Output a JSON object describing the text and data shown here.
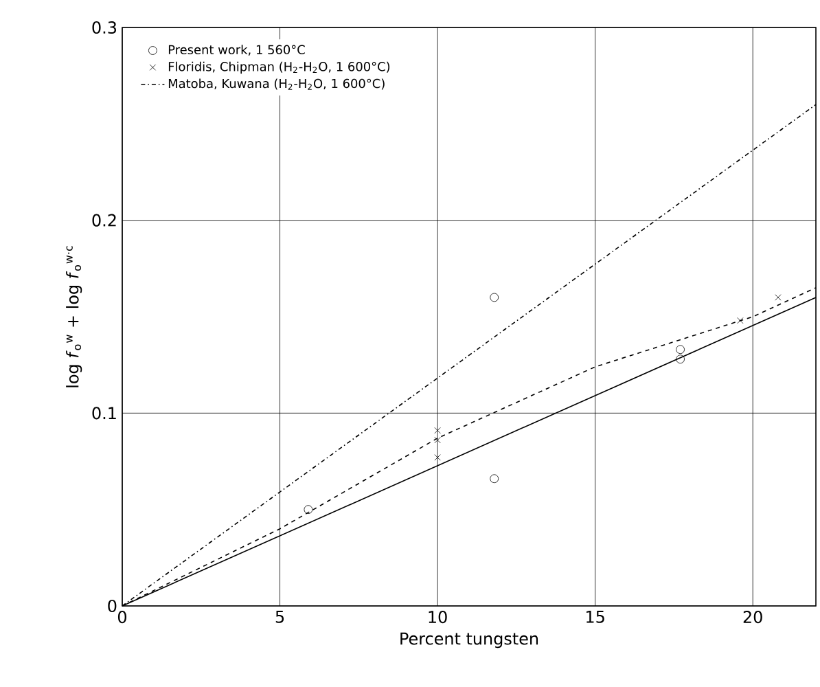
{
  "chart_data": {
    "type": "line",
    "xlabel": "Percent tungsten",
    "ylabel": "log *f*$_{o}$$^{w}$ + log *f*$_{o}$$^{w·c}$",
    "xlim": [
      0,
      22
    ],
    "ylim": [
      0,
      0.3
    ],
    "xticks": [
      0,
      5,
      10,
      15,
      20
    ],
    "yticks": [
      0,
      0.1,
      0.2,
      0.3
    ],
    "grid": true,
    "legend": "top left",
    "series": [
      {
        "name": "Present work, 1 560°C",
        "type": "scatter",
        "marker": "circle",
        "color": "#000000",
        "x": [
          5.9,
          11.8,
          11.8,
          17.7,
          17.7
        ],
        "values": [
          0.05,
          0.16,
          0.066,
          0.133,
          0.128
        ]
      },
      {
        "name": "Floridis, Chipman (H$_{2}$-H$_{2}$O, 1 600°C)",
        "type": "scatter",
        "marker": "cross",
        "color": "#000000",
        "x": [
          10,
          10,
          10,
          19.6,
          20.8
        ],
        "values": [
          0.091,
          0.086,
          0.077,
          0.148,
          0.16
        ]
      },
      {
        "line_style": "dashed",
        "color": "#000000",
        "x": [
          0,
          5,
          10,
          15,
          20,
          22
        ],
        "values": [
          0,
          0.04,
          0.087,
          0.124,
          0.15,
          0.165
        ]
      },
      {
        "name": "Matoba, Kuwana (H$_{2}$-H$_{2}$O, 1 600°C)",
        "line_style": "dashdot",
        "color": "#000000",
        "x": [
          0,
          22
        ],
        "values": [
          0,
          0.26
        ]
      },
      {
        "line_style": "solid",
        "color": "#000000",
        "x": [
          0,
          22
        ],
        "values": [
          0,
          0.16
        ]
      }
    ]
  }
}
